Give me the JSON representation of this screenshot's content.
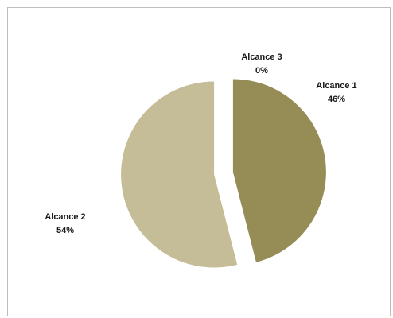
{
  "chart_data": {
    "type": "pie",
    "categories": [
      "Alcance 1",
      "Alcance 2",
      "Alcance 3"
    ],
    "values": [
      46,
      54,
      0
    ],
    "value_labels": [
      "46%",
      "54%",
      "0%"
    ],
    "unit": "%",
    "colors": [
      "#958c56",
      "#c4bd97",
      "#958c56"
    ],
    "exploded": true,
    "legend": "none"
  }
}
